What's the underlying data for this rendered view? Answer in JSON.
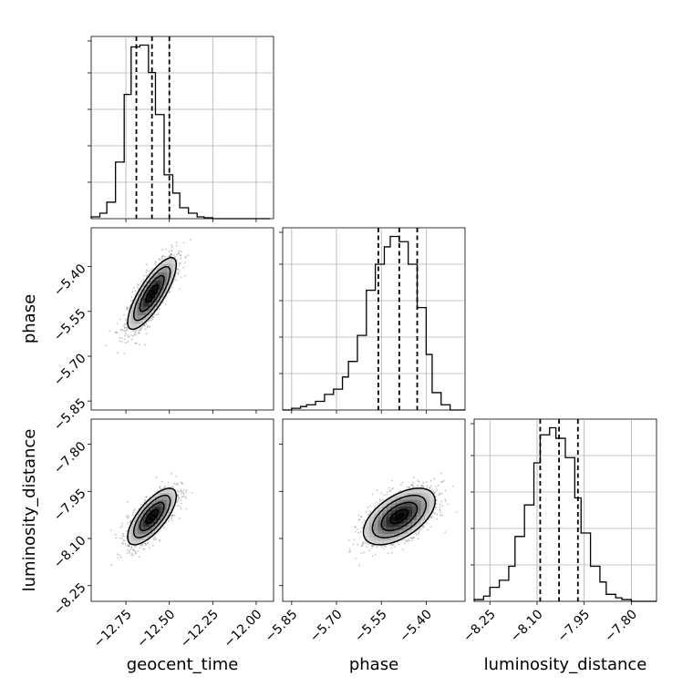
{
  "chart_data": {
    "type": "corner",
    "grid": true,
    "parameters": [
      {
        "key": "geocent_time",
        "label": "geocent_time",
        "range": [
          -12.95,
          -11.9
        ],
        "ticks": [
          -12.75,
          -12.5,
          -12.25,
          -12.0
        ],
        "tick_labels": [
          "−12.75",
          "−12.50",
          "−12.25",
          "−12.00"
        ],
        "quantiles": [
          -12.69,
          -12.6,
          -12.5
        ],
        "mean": -12.6,
        "sd": 0.07
      },
      {
        "key": "phase",
        "label": "phase",
        "range": [
          -5.88,
          -5.27
        ],
        "ticks": [
          -5.85,
          -5.7,
          -5.55,
          -5.4
        ],
        "tick_labels": [
          "−5.85",
          "−5.70",
          "−5.55",
          "−5.40"
        ],
        "quantiles": [
          -5.56,
          -5.49,
          -5.43
        ],
        "mean": -5.49,
        "sd": 0.06
      },
      {
        "key": "luminosity_distance",
        "label": "luminosity_distance",
        "range": [
          -8.3,
          -7.72
        ],
        "ticks": [
          -8.25,
          -8.1,
          -7.95,
          -7.8
        ],
        "tick_labels": [
          "−8.25",
          "−8.10",
          "−7.95",
          "−7.80"
        ],
        "quantiles": [
          -8.09,
          -8.03,
          -7.97
        ],
        "mean": -8.03,
        "sd": 0.045
      }
    ],
    "histograms": [
      {
        "param": "geocent_time",
        "edges": [
          -12.95,
          -12.9,
          -12.86,
          -12.81,
          -12.76,
          -12.72,
          -12.67,
          -12.62,
          -12.58,
          -12.53,
          -12.48,
          -12.44,
          -12.39,
          -12.34,
          -12.3,
          -12.25,
          -12.2,
          -12.16,
          -12.11,
          -12.06,
          -12.02,
          -11.97,
          -11.92
        ],
        "counts": [
          1,
          3,
          9,
          31,
          68,
          94,
          95,
          80,
          57,
          24,
          14,
          6,
          3,
          1,
          0.5,
          0,
          0,
          0,
          0,
          0,
          0,
          0
        ]
      },
      {
        "param": "phase",
        "edges": [
          -5.88,
          -5.85,
          -5.82,
          -5.8,
          -5.77,
          -5.74,
          -5.71,
          -5.68,
          -5.66,
          -5.63,
          -5.6,
          -5.57,
          -5.54,
          -5.52,
          -5.49,
          -5.46,
          -5.43,
          -5.4,
          -5.38,
          -5.35,
          -5.32,
          -5.29,
          -5.27
        ],
        "counts": [
          0,
          1,
          2,
          3,
          5,
          9,
          12,
          19,
          28,
          43,
          69,
          84,
          94,
          100,
          97,
          84,
          59,
          32,
          10,
          3,
          0,
          0
        ]
      },
      {
        "param": "luminosity_distance",
        "edges": [
          -8.3,
          -8.27,
          -8.25,
          -8.22,
          -8.19,
          -8.17,
          -8.14,
          -8.11,
          -8.09,
          -8.06,
          -8.04,
          -8.01,
          -7.98,
          -7.96,
          -7.93,
          -7.9,
          -7.88,
          -7.85,
          -7.83,
          -7.8,
          -7.77,
          -7.75,
          -7.72
        ],
        "counts": [
          1,
          3,
          8,
          12,
          20,
          37,
          55,
          79,
          95,
          99,
          93,
          82,
          59,
          39,
          20,
          11,
          4,
          2,
          1,
          0,
          0,
          0
        ]
      }
    ],
    "pairs": [
      {
        "x": "geocent_time",
        "y": "phase",
        "correlation": 0.8
      },
      {
        "x": "geocent_time",
        "y": "luminosity_distance",
        "correlation": 0.72
      },
      {
        "x": "phase",
        "y": "luminosity_distance",
        "correlation": 0.55
      }
    ],
    "contour_levels_sigma": [
      0.5,
      1.0,
      1.5,
      2.0
    ],
    "colors": {
      "line": "#000000",
      "grid": "#b0b0b0",
      "points": "#555555"
    }
  }
}
